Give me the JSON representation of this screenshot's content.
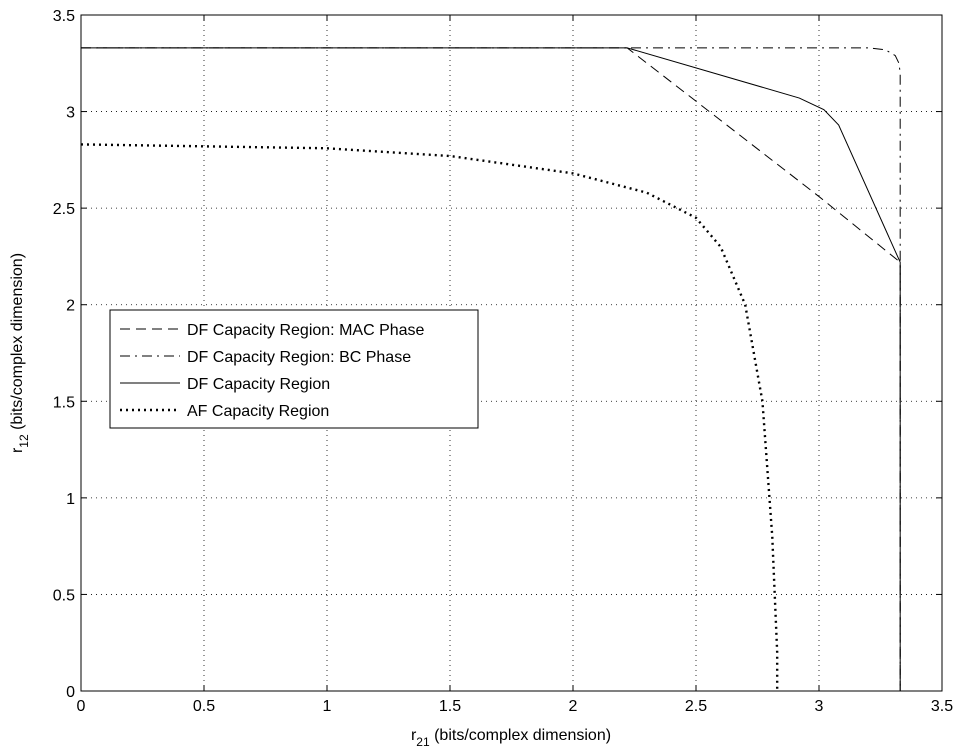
{
  "chart_data": {
    "type": "line",
    "xlabel": {
      "base": "r",
      "sub": "21",
      "rest": " (bits/complex dimension)"
    },
    "ylabel": {
      "base": "r",
      "sub": "12",
      "rest": " (bits/complex dimension)"
    },
    "xlim": [
      0,
      3.5
    ],
    "ylim": [
      0,
      3.5
    ],
    "xticks": [
      0,
      0.5,
      1,
      1.5,
      2,
      2.5,
      3,
      3.5
    ],
    "yticks": [
      0,
      0.5,
      1,
      1.5,
      2,
      2.5,
      3,
      3.5
    ],
    "xtick_labels": [
      "0",
      "0.5",
      "1",
      "1.5",
      "2",
      "2.5",
      "3",
      "3.5"
    ],
    "ytick_labels": [
      "0",
      "0.5",
      "1",
      "1.5",
      "2",
      "2.5",
      "3",
      "3.5"
    ],
    "grid": true,
    "legend_position": "center-left",
    "series": [
      {
        "name": "DF Capacity Region: MAC Phase",
        "style": "dashed",
        "color": "#000000",
        "x": [
          0,
          2.22,
          3.0,
          3.33,
          3.33
        ],
        "y": [
          3.33,
          3.33,
          2.56,
          2.22,
          0
        ]
      },
      {
        "name": "DF Capacity Region: BC Phase",
        "style": "dashdot",
        "color": "#000000",
        "x": [
          0,
          2.22,
          3.2,
          3.27,
          3.31,
          3.325,
          3.33,
          3.33
        ],
        "y": [
          3.33,
          3.33,
          3.33,
          3.32,
          3.29,
          3.25,
          3.2,
          0
        ]
      },
      {
        "name": "DF Capacity Region",
        "style": "solid",
        "color": "#000000",
        "x": [
          0,
          2.22,
          2.92,
          3.02,
          3.08,
          3.33,
          3.33
        ],
        "y": [
          3.33,
          3.33,
          3.07,
          3.01,
          2.93,
          2.22,
          0
        ]
      },
      {
        "name": "AF Capacity Region",
        "style": "dotted",
        "color": "#000000",
        "x": [
          0,
          0.5,
          1.0,
          1.5,
          2.0,
          2.3,
          2.5,
          2.6,
          2.7,
          2.77,
          2.81,
          2.83,
          2.83
        ],
        "y": [
          2.83,
          2.82,
          2.81,
          2.77,
          2.68,
          2.58,
          2.45,
          2.3,
          2.0,
          1.5,
          0.8,
          0.2,
          0
        ]
      }
    ]
  }
}
